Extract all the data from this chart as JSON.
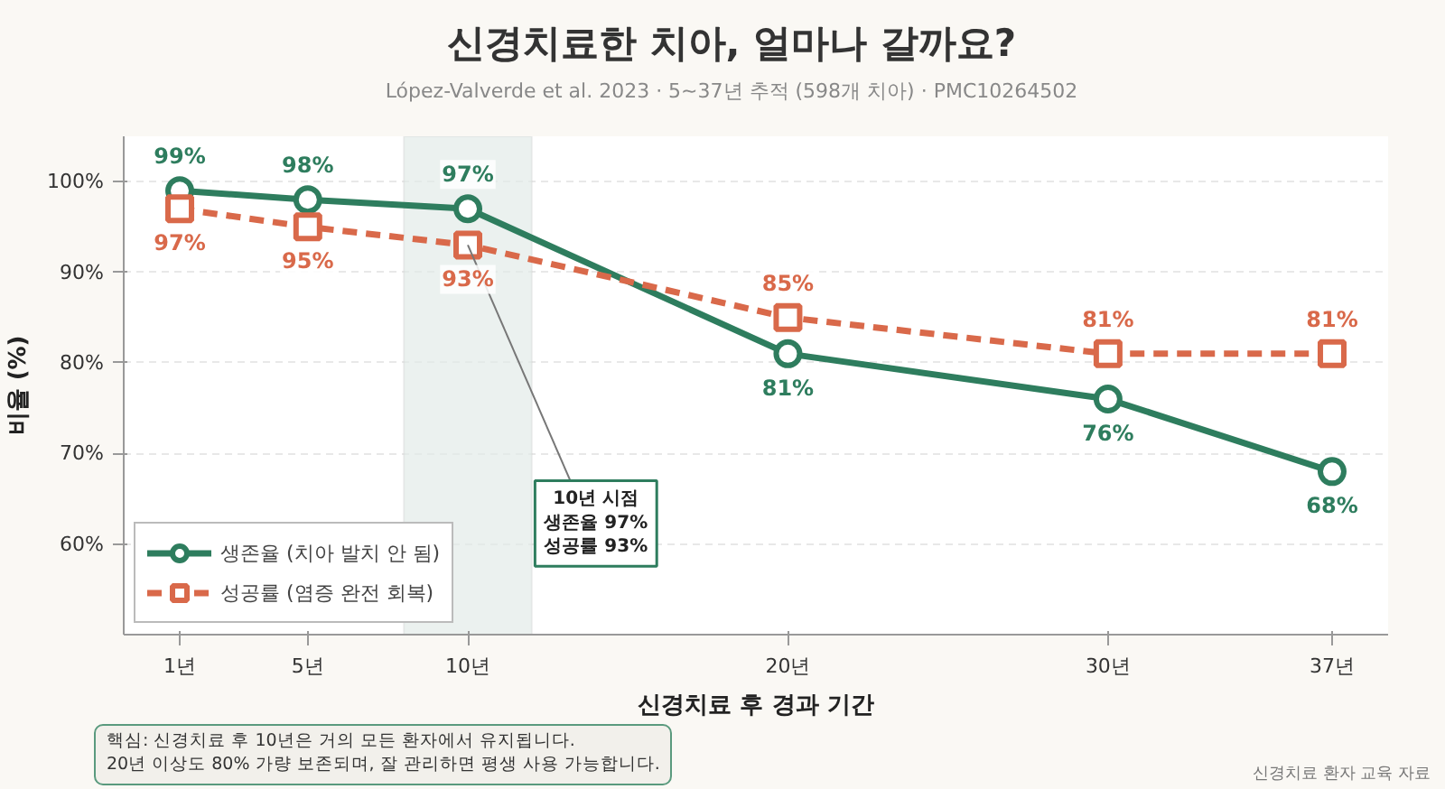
{
  "chart_data": {
    "type": "line",
    "title": "신경치료한 치아, 얼마나 갈까요?",
    "subtitle": "López-Valverde et al. 2023 · 5~37년 추적 (598개 치아) · PMC10264502",
    "xlabel": "신경치료 후 경과 기간",
    "ylabel": "비율 (%)",
    "x": [
      1,
      5,
      10,
      20,
      30,
      37
    ],
    "series": [
      {
        "name": "생존율 (치아 발치 안 됨)",
        "color": "#2e7d5e",
        "values": [
          99,
          98,
          97,
          81,
          76,
          68
        ],
        "value_labels": [
          "99%",
          "98%",
          "97%",
          "81%",
          "76%",
          "68%"
        ],
        "marker": "circle",
        "line_style": "solid"
      },
      {
        "name": "성공률 (염증 완전 회복)",
        "color": "#d9694a",
        "values": [
          97,
          95,
          93,
          85,
          81,
          81
        ],
        "value_labels": [
          "97%",
          "95%",
          "93%",
          "85%",
          "81%",
          "81%"
        ],
        "marker": "square",
        "line_style": "dashed"
      }
    ],
    "xlim": [
      -0.75,
      38.75
    ],
    "xticks": [
      {
        "value": 1,
        "label": "1년"
      },
      {
        "value": 5,
        "label": "5년"
      },
      {
        "value": 10,
        "label": "10년"
      },
      {
        "value": 20,
        "label": "20년"
      },
      {
        "value": 30,
        "label": "30년"
      },
      {
        "value": 37,
        "label": "37년"
      }
    ],
    "ylim": [
      50,
      105
    ],
    "yticks": [
      {
        "value": 60,
        "label": "60%"
      },
      {
        "value": 70,
        "label": "70%"
      },
      {
        "value": 80,
        "label": "80%"
      },
      {
        "value": 90,
        "label": "90%"
      },
      {
        "value": 100,
        "label": "100%"
      }
    ],
    "bands": [
      {
        "axis": "x",
        "from": 8,
        "to": 12,
        "color": "#e3ebe8"
      }
    ],
    "annotations": [
      {
        "text": "10년 시점\n생존율 97%\n성공률 93%",
        "x": 10,
        "y": 93
      },
      "핵심: 신경치료 후 10년은 거의 모든 환자에서 유지됩니다.\n20년 이상도 80% 가량 보존되며, 잘 관리하면 평생 사용 가능합니다.",
      "신경치료 환자 교육 자료"
    ],
    "data_labels": true,
    "grid": "y",
    "legend": "bottom left"
  }
}
